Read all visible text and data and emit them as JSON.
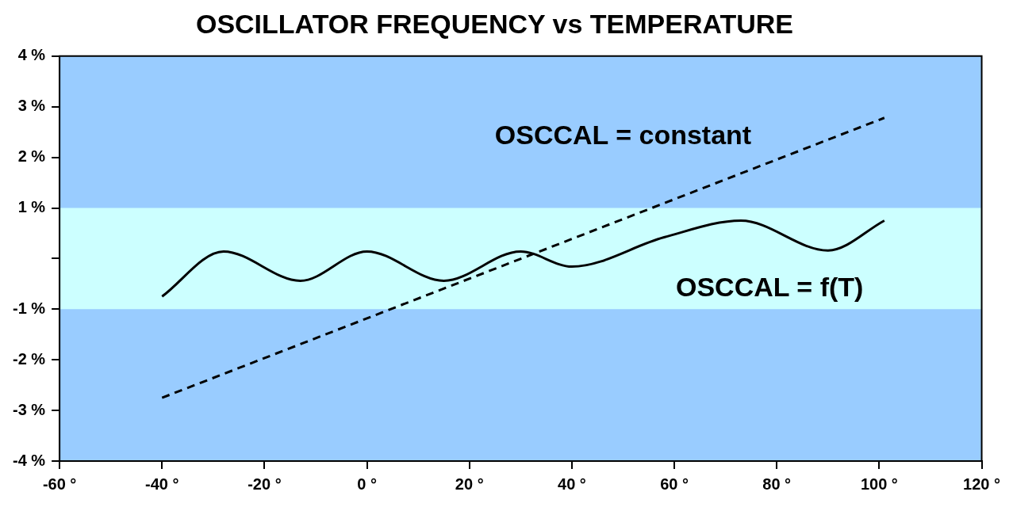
{
  "chart_data": {
    "type": "line",
    "title": "OSCILLATOR FREQUENCY vs TEMPERATURE",
    "xlim": [
      -60,
      120
    ],
    "xticks": [
      {
        "value": -60,
        "label": "-60 °"
      },
      {
        "value": -40,
        "label": "-40 °"
      },
      {
        "value": -20,
        "label": "-20 °"
      },
      {
        "value": 0,
        "label": "0 °"
      },
      {
        "value": 20,
        "label": "20 °"
      },
      {
        "value": 40,
        "label": "40 °"
      },
      {
        "value": 60,
        "label": "60 °"
      },
      {
        "value": 80,
        "label": "80 °"
      },
      {
        "value": 100,
        "label": "100 °"
      },
      {
        "value": 120,
        "label": "120 °"
      }
    ],
    "ylim": [
      -4,
      4
    ],
    "yticks": [
      {
        "value": -4,
        "label": "-4 %"
      },
      {
        "value": -3,
        "label": "-3 %"
      },
      {
        "value": -2,
        "label": "-2 %"
      },
      {
        "value": -1,
        "label": "-1 %"
      },
      {
        "value": 0,
        "label": null
      },
      {
        "value": 1,
        "label": "1 %"
      },
      {
        "value": 2,
        "label": "2 %"
      },
      {
        "value": 3,
        "label": "3 %"
      },
      {
        "value": 4,
        "label": "4 %"
      }
    ],
    "bands": [
      {
        "axis": "y",
        "from": -1,
        "to": 1,
        "color": "#ccffff"
      }
    ],
    "marker": "none",
    "series": [
      {
        "name": "OSCCAL = constant",
        "color": "#000000",
        "line_style": "dashed",
        "x": [
          -40,
          101
        ],
        "values": [
          -2.75,
          2.78
        ]
      },
      {
        "name": "OSCCAL = f(T)",
        "color": "#000000",
        "line_style": "solid",
        "x": [
          -40,
          -28,
          -13,
          0,
          15,
          30,
          40,
          58,
          73,
          90,
          101
        ],
        "values": [
          -0.75,
          0.14,
          -0.44,
          0.14,
          -0.44,
          0.14,
          -0.16,
          0.42,
          0.75,
          0.16,
          0.75
        ]
      }
    ]
  }
}
